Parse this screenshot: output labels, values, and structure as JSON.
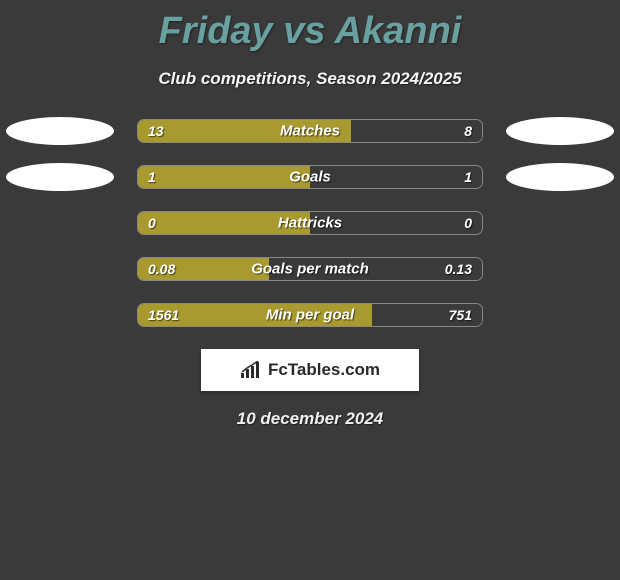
{
  "title": "Friday vs Akanni",
  "subtitle": "Club competitions, Season 2024/2025",
  "date": "10 december 2024",
  "badge": {
    "label": "FcTables.com"
  },
  "colors": {
    "bg": "#3a3a3a",
    "title": "#6aa0a0",
    "bar_left": "#a89a2e",
    "bar_right": "#3a3a3a",
    "ellipse": "#ffffff",
    "text": "#ffffff"
  },
  "stats": [
    {
      "label": "Matches",
      "left_val": "13",
      "right_val": "8",
      "left_pct": 62,
      "show_ellipses": true
    },
    {
      "label": "Goals",
      "left_val": "1",
      "right_val": "1",
      "left_pct": 50,
      "show_ellipses": true
    },
    {
      "label": "Hattricks",
      "left_val": "0",
      "right_val": "0",
      "left_pct": 50,
      "show_ellipses": false
    },
    {
      "label": "Goals per match",
      "left_val": "0.08",
      "right_val": "0.13",
      "left_pct": 38,
      "show_ellipses": false
    },
    {
      "label": "Min per goal",
      "left_val": "1561",
      "right_val": "751",
      "left_pct": 68,
      "show_ellipses": false
    }
  ]
}
